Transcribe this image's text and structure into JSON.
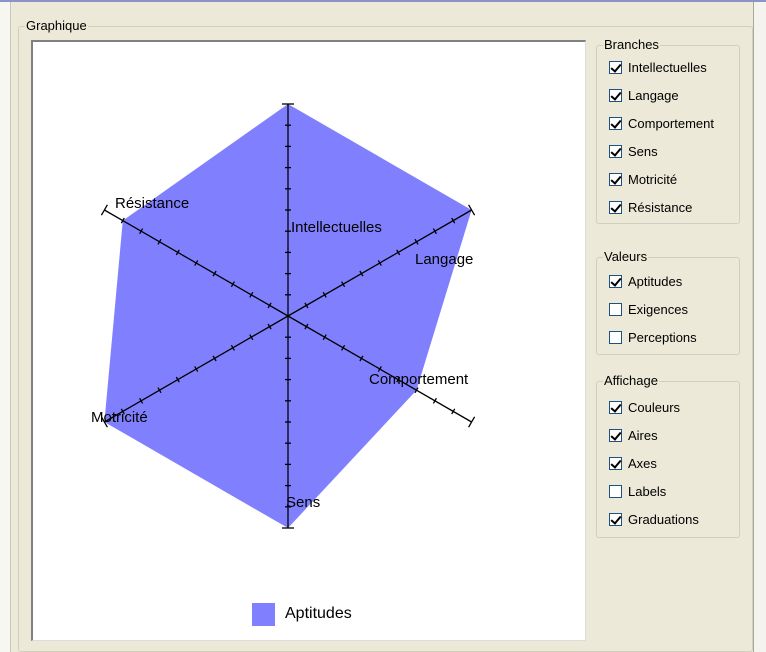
{
  "graph": {
    "group_title": "Graphique",
    "axes": [
      {
        "name": "Intellectuelles",
        "value": 10
      },
      {
        "name": "Langage",
        "value": 10
      },
      {
        "name": "Comportement",
        "value": 7
      },
      {
        "name": "Sens",
        "value": 10
      },
      {
        "name": "Motricité",
        "value": 10
      },
      {
        "name": "Résistance",
        "value": 9
      }
    ],
    "max": 10,
    "fill_color": "#8080ff",
    "legend_label": "Aptitudes"
  },
  "branches": {
    "title": "Branches",
    "items": [
      {
        "label": "Intellectuelles",
        "checked": true
      },
      {
        "label": "Langage",
        "checked": true
      },
      {
        "label": "Comportement",
        "checked": true
      },
      {
        "label": "Sens",
        "checked": true
      },
      {
        "label": "Motricité",
        "checked": true
      },
      {
        "label": "Résistance",
        "checked": true
      }
    ]
  },
  "valeurs": {
    "title": "Valeurs",
    "items": [
      {
        "label": "Aptitudes",
        "checked": true
      },
      {
        "label": "Exigences",
        "checked": false
      },
      {
        "label": "Perceptions",
        "checked": false
      }
    ]
  },
  "affichage": {
    "title": "Affichage",
    "items": [
      {
        "label": "Couleurs",
        "checked": true
      },
      {
        "label": "Aires",
        "checked": true
      },
      {
        "label": "Axes",
        "checked": true
      },
      {
        "label": "Labels",
        "checked": false
      },
      {
        "label": "Graduations",
        "checked": true
      }
    ]
  }
}
